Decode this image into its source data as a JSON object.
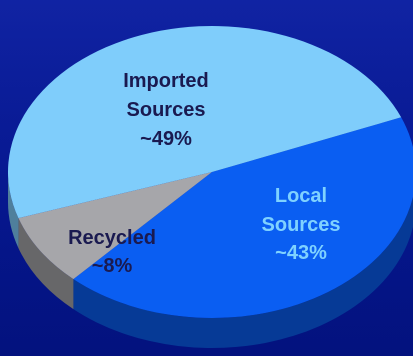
{
  "chart_data": {
    "type": "pie",
    "style": "3d",
    "categories": [
      "Imported Sources",
      "Local Sources",
      "Recycled"
    ],
    "values": [
      49,
      43,
      8
    ],
    "value_labels": [
      "~49%",
      "~43%",
      "~8%"
    ],
    "colors": {
      "Imported Sources": "#7fcdfb",
      "Local Sources": "#0a5ef2",
      "Recycled": "#a6a6aa",
      "label_dark": "#1a1a50",
      "label_light": "#7fd2ff"
    },
    "legend": "none",
    "title": ""
  }
}
